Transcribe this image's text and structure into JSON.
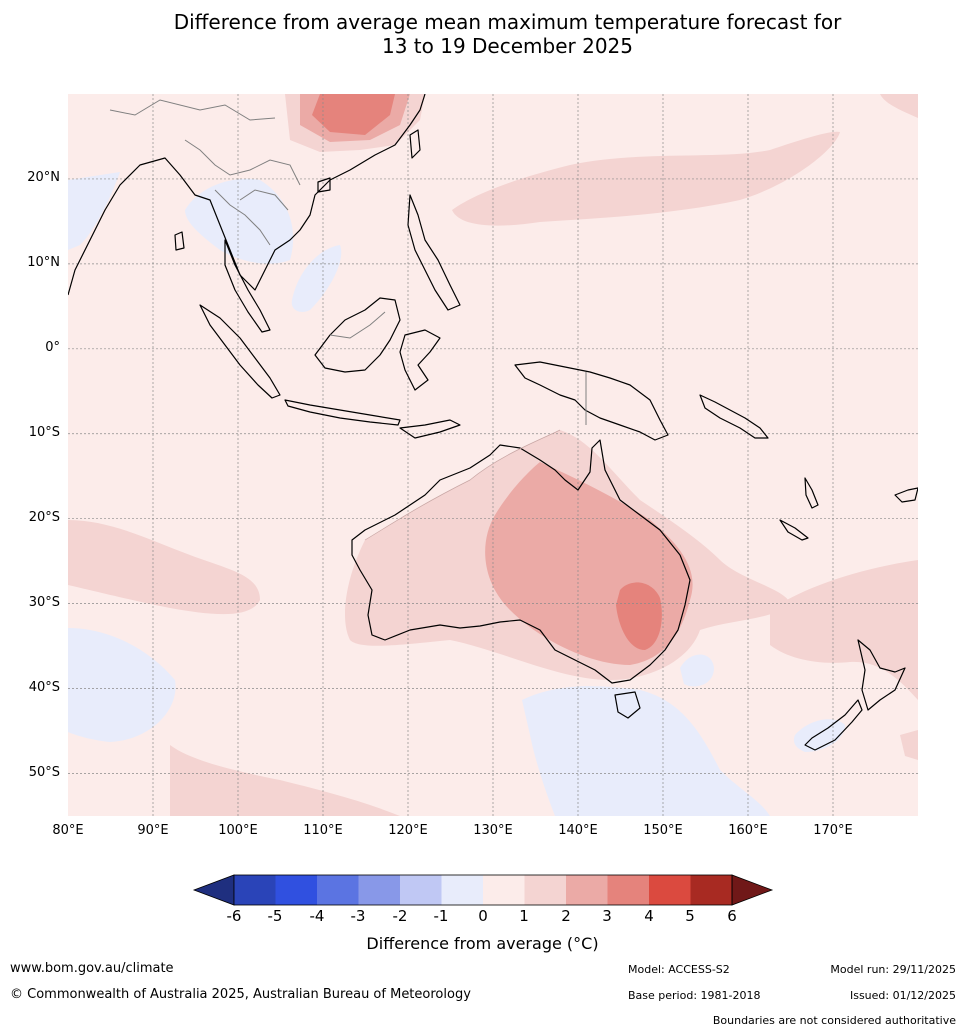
{
  "title": {
    "line1": "Difference from average mean maximum temperature forecast for",
    "line2": "13 to 19 December 2025"
  },
  "map": {
    "lon_range": [
      80,
      180
    ],
    "lat_range": [
      -55,
      30
    ],
    "lat_labels": [
      "20°N",
      "10°N",
      "0°",
      "10°S",
      "20°S",
      "30°S",
      "40°S",
      "50°S"
    ],
    "lon_labels": [
      "80°E",
      "90°E",
      "100°E",
      "110°E",
      "120°E",
      "130°E",
      "140°E",
      "150°E",
      "160°E",
      "170°E"
    ]
  },
  "colorbar": {
    "ticks": [
      "-6",
      "-5",
      "-4",
      "-3",
      "-2",
      "-1",
      "0",
      "1",
      "2",
      "3",
      "4",
      "5",
      "6"
    ],
    "colors": [
      "#1f2f7f",
      "#2a44b8",
      "#3050e0",
      "#5b74e2",
      "#8898e8",
      "#c0c8f4",
      "#e8ecfb",
      "#fcecea",
      "#f4d4d2",
      "#ebaaa6",
      "#e5837c",
      "#db4a3f",
      "#a82a22",
      "#701818"
    ],
    "label": "Difference from average (°C)"
  },
  "footer": {
    "website": "www.bom.gov.au/climate",
    "copyright": "© Commonwealth of Australia 2025, Australian Bureau of Meteorology",
    "model": "Model: ACCESS-S2",
    "base_period": "Base period: 1981-2018",
    "model_run": "Model run: 29/11/2025",
    "issued": "Issued: 01/12/2025",
    "disclaimer": "Boundaries are not considered authoritative"
  }
}
